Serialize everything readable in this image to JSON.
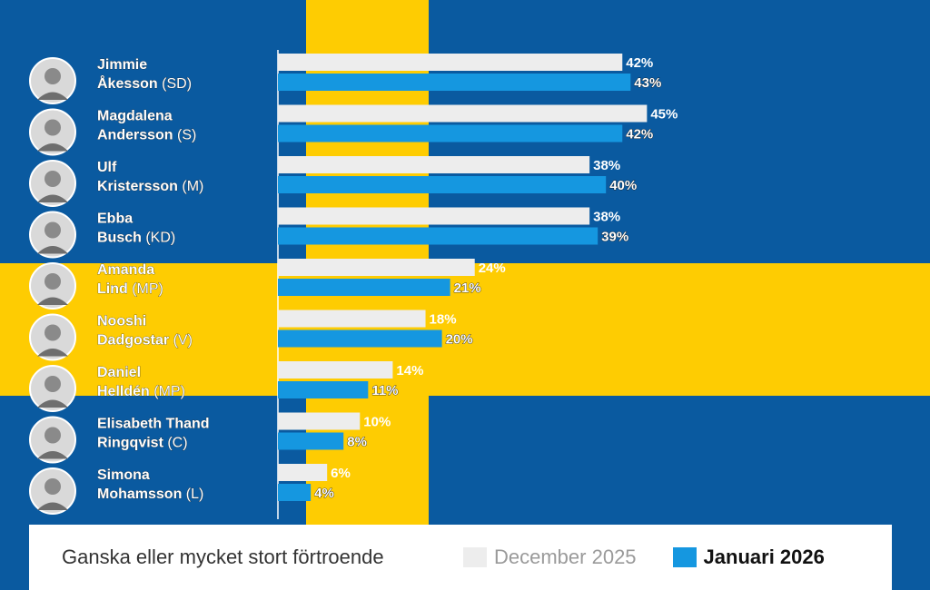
{
  "chart_data": {
    "type": "bar",
    "orientation": "horizontal",
    "title": "Ganska eller mycket stort förtroende",
    "categories": [
      {
        "name": "Jimmie Åkesson",
        "party": "(SD)"
      },
      {
        "name": "Magdalena Andersson",
        "party": "(S)"
      },
      {
        "name": "Ulf Kristersson",
        "party": "(M)"
      },
      {
        "name": "Ebba Busch",
        "party": "(KD)"
      },
      {
        "name": "Amanda Lind",
        "party": "(MP)"
      },
      {
        "name": "Nooshi Dadgostar",
        "party": "(V)"
      },
      {
        "name": "Daniel Helldén",
        "party": "(MP)"
      },
      {
        "name": "Elisabeth Thand Ringqvist",
        "party": "(C)"
      },
      {
        "name": "Simona Mohamsson",
        "party": "(L)"
      }
    ],
    "series": [
      {
        "name": "December 2025",
        "values": [
          42,
          45,
          38,
          38,
          24,
          18,
          14,
          10,
          6
        ],
        "color": "#ededed",
        "label_color": "#ffffff"
      },
      {
        "name": "Januari 2026",
        "values": [
          43,
          42,
          40,
          39,
          21,
          20,
          11,
          8,
          4
        ],
        "color": "#1597e0",
        "label_color": "#ffffff"
      }
    ],
    "value_suffix": "%",
    "xlim": [
      0,
      50
    ]
  },
  "legend": {
    "title": "Ganska eller mycket stort förtroende",
    "entries": [
      "December 2025",
      "Januari 2026"
    ]
  },
  "colors": {
    "flag_blue": "#0a5aa0",
    "flag_yellow": "#fecc02"
  }
}
